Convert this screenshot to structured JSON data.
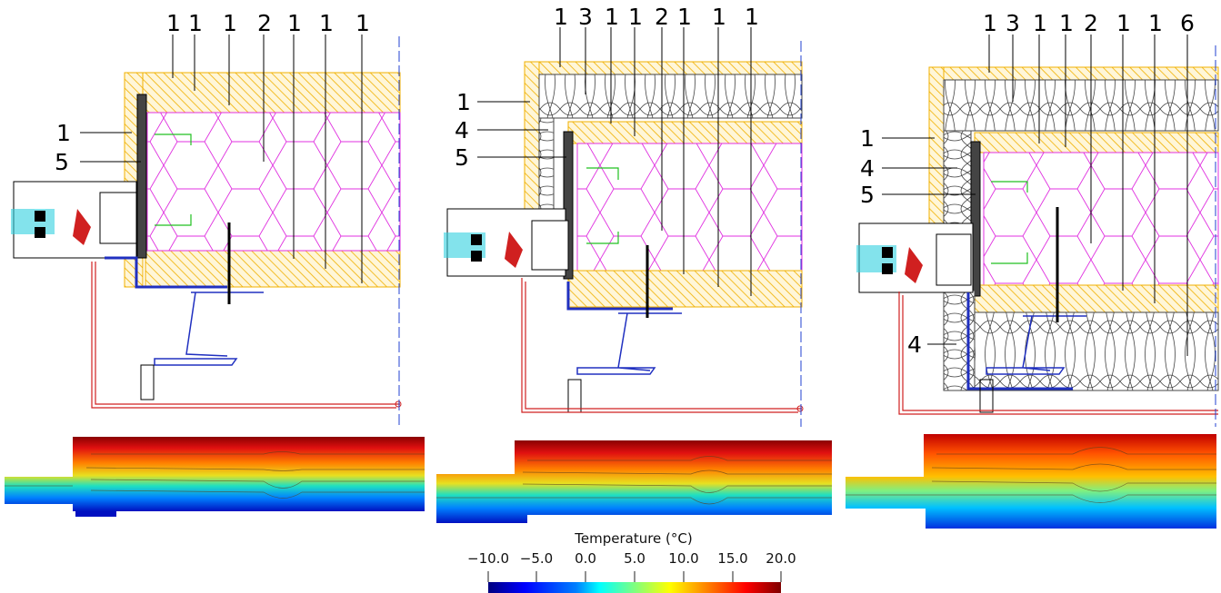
{
  "panels": [
    {
      "id": "a",
      "top_labels": [
        "1",
        "1",
        "1",
        "2",
        "1",
        "1",
        "1"
      ],
      "side_labels": [
        "1",
        "5"
      ],
      "bottom_labels": []
    },
    {
      "id": "b",
      "top_labels": [
        "1",
        "3",
        "1",
        "1",
        "2",
        "1",
        "1",
        "1"
      ],
      "side_labels": [
        "1",
        "4",
        "5"
      ],
      "bottom_labels": []
    },
    {
      "id": "c",
      "top_labels": [
        "1",
        "3",
        "1",
        "1",
        "2",
        "1",
        "1",
        "6"
      ],
      "side_labels": [
        "1",
        "4",
        "5"
      ],
      "bottom_labels": [
        "4"
      ]
    }
  ],
  "colorbar": {
    "title": "Temperature (°C)",
    "ticks": [
      "−10.0",
      "−5.0",
      "0.0",
      "5.0",
      "10.0",
      "15.0",
      "20.0"
    ],
    "range": [
      -10,
      20
    ],
    "colormap": [
      "#00007f",
      "#0000ff",
      "#007fff",
      "#00ffff",
      "#7fff7f",
      "#ffff00",
      "#ff7f00",
      "#ff0000",
      "#7f0000"
    ]
  },
  "colors": {
    "wood_hatch": "#f0b000",
    "insulation_hex": "#e030e0",
    "mineral_wool": "#333333",
    "steel_profile": "#2030c0",
    "thermal_line": "#d02020",
    "glass": "#30d0e0",
    "centerline": "#2040d0"
  }
}
